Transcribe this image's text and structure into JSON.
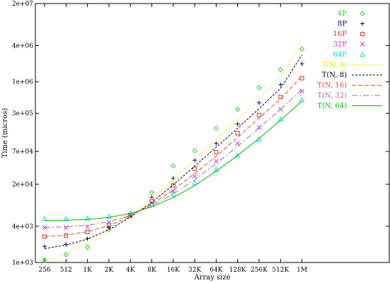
{
  "chart_data": {
    "type": "scatter",
    "xlabel": "Array size",
    "ylabel": "Time (micros)",
    "x_scale": "log2",
    "y_scale": "log",
    "ylim": [
      1000,
      20000000
    ],
    "y_ticks": [
      "1e+03",
      "4e+03",
      "2e+04",
      "7e+04",
      "3e+05",
      "1e+06",
      "4e+06",
      "2e+07"
    ],
    "y_tick_values": [
      1000,
      4000,
      20000,
      70000,
      300000,
      1000000,
      4000000,
      20000000
    ],
    "categories": [
      "256",
      "512",
      "1K",
      "2K",
      "4K",
      "8K",
      "16K",
      "32K",
      "64K",
      "128K",
      "256K",
      "512K",
      "1M"
    ],
    "legend_position": "top-right",
    "grid": false,
    "series": [
      {
        "name": "4P",
        "marker": "diamond",
        "color": "#32cd32",
        "values": [
          1100,
          1350,
          1800,
          3500,
          6500,
          14500,
          40000,
          72000,
          170000,
          350000,
          800000,
          1600000,
          3500000
        ]
      },
      {
        "name": "8P",
        "marker": "plus",
        "color": "#00008b",
        "values": [
          1850,
          2000,
          2500,
          3800,
          6000,
          12000,
          25000,
          50000,
          95000,
          200000,
          450000,
          900000,
          2000000
        ]
      },
      {
        "name": "16P",
        "marker": "square",
        "color": "#cc3333",
        "values": [
          2700,
          2800,
          3200,
          4200,
          6000,
          10500,
          19000,
          36000,
          68000,
          140000,
          280000,
          560000,
          1150000
        ]
      },
      {
        "name": "32P",
        "marker": "cross",
        "color": "#cc33cc",
        "values": [
          3800,
          3800,
          3900,
          4700,
          6100,
          9700,
          15500,
          27000,
          48000,
          95000,
          175000,
          350000,
          700000
        ]
      },
      {
        "name": "64P",
        "marker": "triangle",
        "color": "#00e0e0",
        "values": [
          5300,
          5300,
          5400,
          5800,
          6600,
          9000,
          13500,
          21000,
          35000,
          60000,
          110000,
          240000,
          500000
        ]
      },
      {
        "name": "T(N, 4)",
        "line": true,
        "dash": "2,2",
        "color": "#e8e800",
        "values": [
          1000,
          1400,
          2050,
          3300,
          6000,
          11500,
          24000,
          51000,
          110000,
          240000,
          520000,
          1150000,
          4400000
        ]
      },
      {
        "name": "T(N, 8)",
        "line": true,
        "dash": "3,2",
        "color": "#000000",
        "values": [
          1700,
          1950,
          2450,
          3500,
          5700,
          10000,
          19500,
          40000,
          82000,
          170000,
          360000,
          780000,
          2800000
        ]
      },
      {
        "name": "T(N, 16)",
        "line": true,
        "dash": "6,3",
        "color": "#e0501e",
        "values": [
          2700,
          2850,
          3250,
          4100,
          5900,
          9300,
          16000,
          30000,
          58000,
          120000,
          250000,
          520000,
          1250000
        ]
      },
      {
        "name": "T(N, 32)",
        "line": true,
        "dash": "8,3,2,3",
        "color": "#a07090",
        "values": [
          3800,
          3900,
          4150,
          4750,
          6100,
          8800,
          13800,
          23500,
          44000,
          85000,
          170000,
          350000,
          750000
        ]
      },
      {
        "name": "T(N, 64)",
        "line": true,
        "dash": "",
        "color": "#00bb00",
        "values": [
          5000,
          5050,
          5200,
          5600,
          6500,
          8400,
          12000,
          19000,
          33000,
          60000,
          115000,
          230000,
          480000
        ]
      }
    ]
  }
}
